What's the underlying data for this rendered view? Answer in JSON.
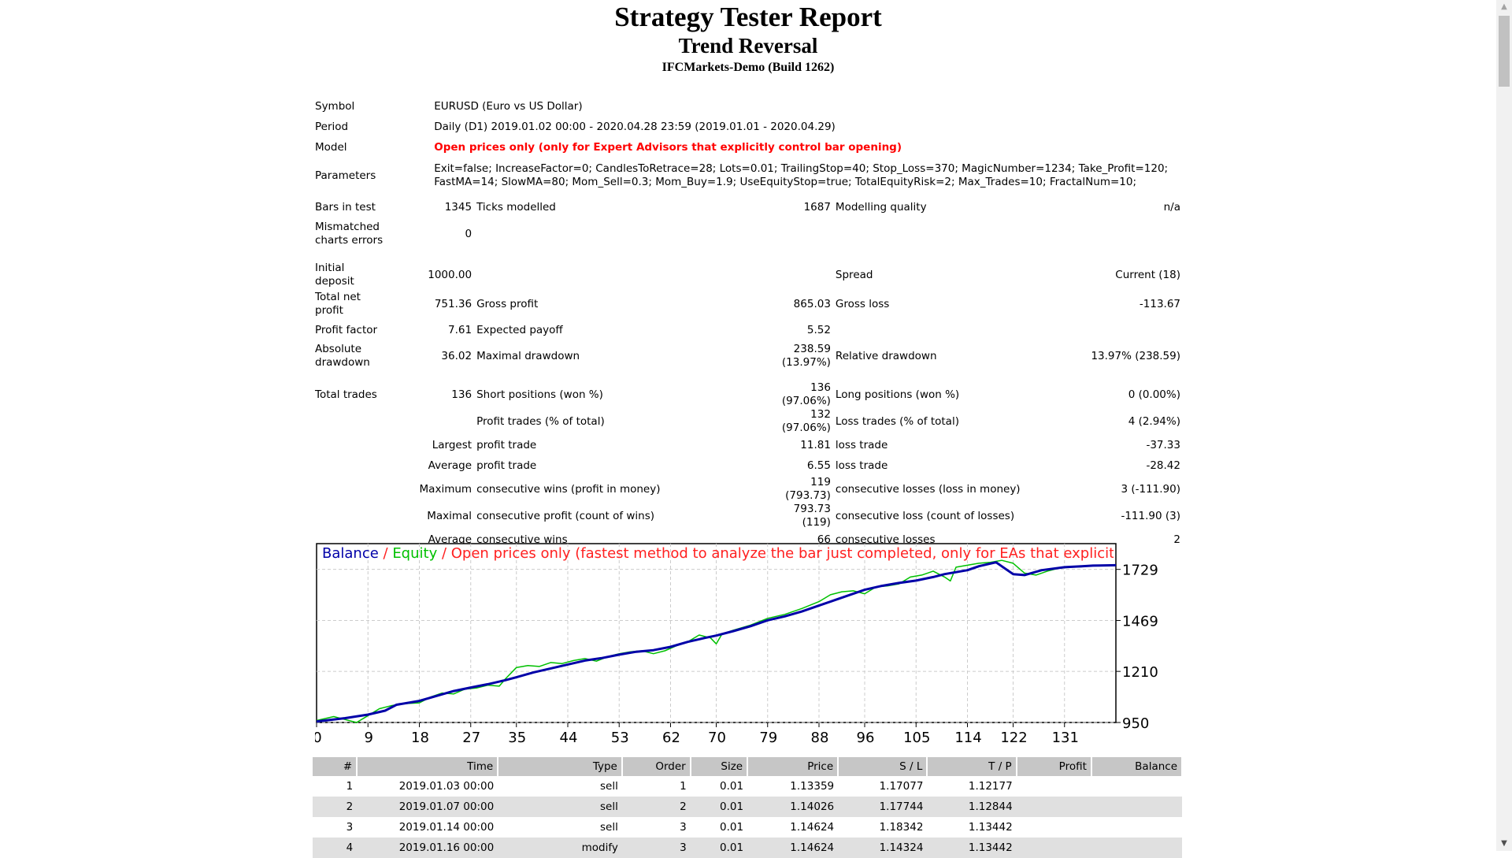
{
  "header": {
    "title": "Strategy Tester Report",
    "subtitle": "Trend Reversal",
    "server": "IFCMarkets-Demo (Build 1262)"
  },
  "summary": {
    "symbol_label": "Symbol",
    "symbol_value": "EURUSD (Euro vs US Dollar)",
    "period_label": "Period",
    "period_value": "Daily (D1) 2019.01.02 00:00 - 2020.04.28 23:59 (2019.01.01 - 2020.04.29)",
    "model_label": "Model",
    "model_value": "Open prices only (only for Expert Advisors that explicitly control bar opening)",
    "parameters_label": "Parameters",
    "parameters_line1": "Exit=false; IncreaseFactor=0; CandlesToRetrace=28; Lots=0.01; TrailingStop=40; Stop_Loss=370; MagicNumber=1234; Take_Profit=120;",
    "parameters_line2": "FastMA=14; SlowMA=80; Mom_Sell=0.3; Mom_Buy=1.9; UseEquityStop=true; TotalEquityRisk=2; Max_Trades=10; FractalNum=10;",
    "bars_label": "Bars in test",
    "bars_value": "1345",
    "ticks_label": "Ticks modelled",
    "ticks_value": "1687",
    "quality_label": "Modelling quality",
    "quality_value": "n/a",
    "mismatch_label_1": "Mismatched",
    "mismatch_label_2": "charts errors",
    "mismatch_value": "0",
    "deposit_label_1": "Initial",
    "deposit_label_2": "deposit",
    "deposit_value": "1000.00",
    "spread_label": "Spread",
    "spread_value": "Current (18)",
    "net_label_1": "Total net",
    "net_label_2": "profit",
    "net_value": "751.36",
    "gross_profit_label": "Gross profit",
    "gross_profit_value": "865.03",
    "gross_loss_label": "Gross loss",
    "gross_loss_value": "-113.67",
    "pf_label": "Profit factor",
    "pf_value": "7.61",
    "payoff_label": "Expected payoff",
    "payoff_value": "5.52",
    "abs_dd_label_1": "Absolute",
    "abs_dd_label_2": "drawdown",
    "abs_dd_value": "36.02",
    "max_dd_label": "Maximal drawdown",
    "max_dd_value": "238.59 (13.97%)",
    "rel_dd_label": "Relative drawdown",
    "rel_dd_value": "13.97% (238.59)",
    "trades_label": "Total trades",
    "trades_value": "136",
    "short_label": "Short positions (won %)",
    "short_value": "136 (97.06%)",
    "long_label": "Long positions (won %)",
    "long_value": "0 (0.00%)",
    "profit_trades_label": "Profit trades (% of total)",
    "profit_trades_value": "132 (97.06%)",
    "loss_trades_label": "Loss trades (% of total)",
    "loss_trades_value": "4 (2.94%)",
    "largest_label": "Largest",
    "largest_profit_label": "profit trade",
    "largest_profit_value": "11.81",
    "largest_loss_label": "loss trade",
    "largest_loss_value": "-37.33",
    "average_label": "Average",
    "average_profit_label": "profit trade",
    "average_profit_value": "6.55",
    "average_loss_label": "loss trade",
    "average_loss_value": "-28.42",
    "maximum_label": "Maximum",
    "max_wins_label": "consecutive wins (profit in money)",
    "max_wins_value": "119 (793.73)",
    "max_losses_label": "consecutive losses (loss in money)",
    "max_losses_value": "3 (-111.90)",
    "maximal_label": "Maximal",
    "maximal_profit_label": "consecutive profit (count of wins)",
    "maximal_profit_value": "793.73 (119)",
    "maximal_loss_label": "consecutive loss (count of losses)",
    "maximal_loss_value": "-111.90 (3)",
    "avg_consec_label": "Average",
    "avg_consec_wins_label": "consecutive wins",
    "avg_consec_wins_value": "66",
    "avg_consec_losses_label": "consecutive losses",
    "avg_consec_losses_value": "2"
  },
  "chart_legend": {
    "balance": "Balance",
    "sep1": " / ",
    "equity": "Equity",
    "sep2": " / ",
    "model": "Open prices only (fastest method to analyze the bar just completed, only for EAs that explicitly control b"
  },
  "chart_data": {
    "type": "line",
    "x_ticks": [
      "0",
      "9",
      "18",
      "27",
      "35",
      "44",
      "53",
      "62",
      "70",
      "79",
      "88",
      "96",
      "105",
      "114",
      "122",
      "131"
    ],
    "y_ticks": [
      "1729",
      "1469",
      "1210",
      "950"
    ],
    "ylim": [
      950,
      1860
    ],
    "xlim": [
      0,
      140
    ],
    "grid": true,
    "colors": {
      "balance": "#0000a8",
      "equity": "#00c000",
      "legend_model": "#ff2020",
      "legend_balance": "#0000a8",
      "legend_equity": "#00c000"
    },
    "series": [
      {
        "name": "Balance",
        "x": [
          0,
          5,
          9,
          12,
          14,
          18,
          21,
          24,
          27,
          30,
          33,
          35,
          38,
          41,
          44,
          47,
          50,
          53,
          56,
          59,
          62,
          65,
          68,
          70,
          73,
          76,
          79,
          82,
          85,
          88,
          91,
          94,
          96,
          99,
          102,
          105,
          108,
          110,
          114,
          116,
          119,
          122,
          124,
          127,
          131,
          134,
          136,
          140
        ],
        "y": [
          955,
          972,
          990,
          1010,
          1040,
          1060,
          1085,
          1110,
          1128,
          1145,
          1165,
          1180,
          1205,
          1225,
          1245,
          1265,
          1278,
          1295,
          1310,
          1318,
          1335,
          1360,
          1380,
          1392,
          1415,
          1440,
          1470,
          1490,
          1515,
          1545,
          1575,
          1605,
          1625,
          1645,
          1660,
          1672,
          1690,
          1705,
          1725,
          1745,
          1765,
          1705,
          1700,
          1725,
          1740,
          1745,
          1748,
          1750
        ]
      },
      {
        "name": "Equity",
        "x": [
          0,
          3,
          5,
          7,
          9,
          11,
          13,
          15,
          18,
          20,
          22,
          24,
          26,
          28,
          30,
          32,
          33,
          35,
          37,
          39,
          41,
          43,
          45,
          47,
          49,
          51,
          53,
          55,
          57,
          59,
          61,
          63,
          65,
          67,
          69,
          70,
          71,
          73,
          76,
          79,
          82,
          85,
          88,
          90,
          92,
          94,
          96,
          98,
          100,
          102,
          104,
          106,
          108,
          110,
          111,
          112,
          114,
          116,
          118,
          120,
          122,
          124,
          126,
          128,
          130,
          132,
          134,
          136,
          140
        ],
        "y": [
          960,
          980,
          965,
          950,
          985,
          1020,
          1035,
          1045,
          1050,
          1080,
          1100,
          1095,
          1120,
          1125,
          1140,
          1135,
          1170,
          1230,
          1240,
          1235,
          1255,
          1250,
          1265,
          1275,
          1262,
          1285,
          1300,
          1310,
          1315,
          1300,
          1315,
          1340,
          1360,
          1395,
          1380,
          1350,
          1400,
          1420,
          1445,
          1480,
          1500,
          1530,
          1565,
          1600,
          1615,
          1620,
          1605,
          1640,
          1645,
          1655,
          1690,
          1700,
          1720,
          1690,
          1670,
          1740,
          1750,
          1760,
          1765,
          1775,
          1760,
          1710,
          1700,
          1720,
          1735,
          1740,
          1742,
          1748,
          1752
        ]
      }
    ]
  },
  "orders": {
    "headers": [
      "#",
      "Time",
      "Type",
      "Order",
      "Size",
      "Price",
      "S / L",
      "T / P",
      "Profit",
      "Balance"
    ],
    "rows": [
      [
        "1",
        "2019.01.03 00:00",
        "sell",
        "1",
        "0.01",
        "1.13359",
        "1.17077",
        "1.12177",
        "",
        ""
      ],
      [
        "2",
        "2019.01.07 00:00",
        "sell",
        "2",
        "0.01",
        "1.14026",
        "1.17744",
        "1.12844",
        "",
        ""
      ],
      [
        "3",
        "2019.01.14 00:00",
        "sell",
        "3",
        "0.01",
        "1.14624",
        "1.18342",
        "1.13442",
        "",
        ""
      ],
      [
        "4",
        "2019.01.16 00:00",
        "modify",
        "3",
        "0.01",
        "1.14624",
        "1.14324",
        "1.13442",
        "",
        ""
      ]
    ]
  },
  "scrollbar": {
    "up_arrow": "▲",
    "down_arrow": "▼"
  }
}
